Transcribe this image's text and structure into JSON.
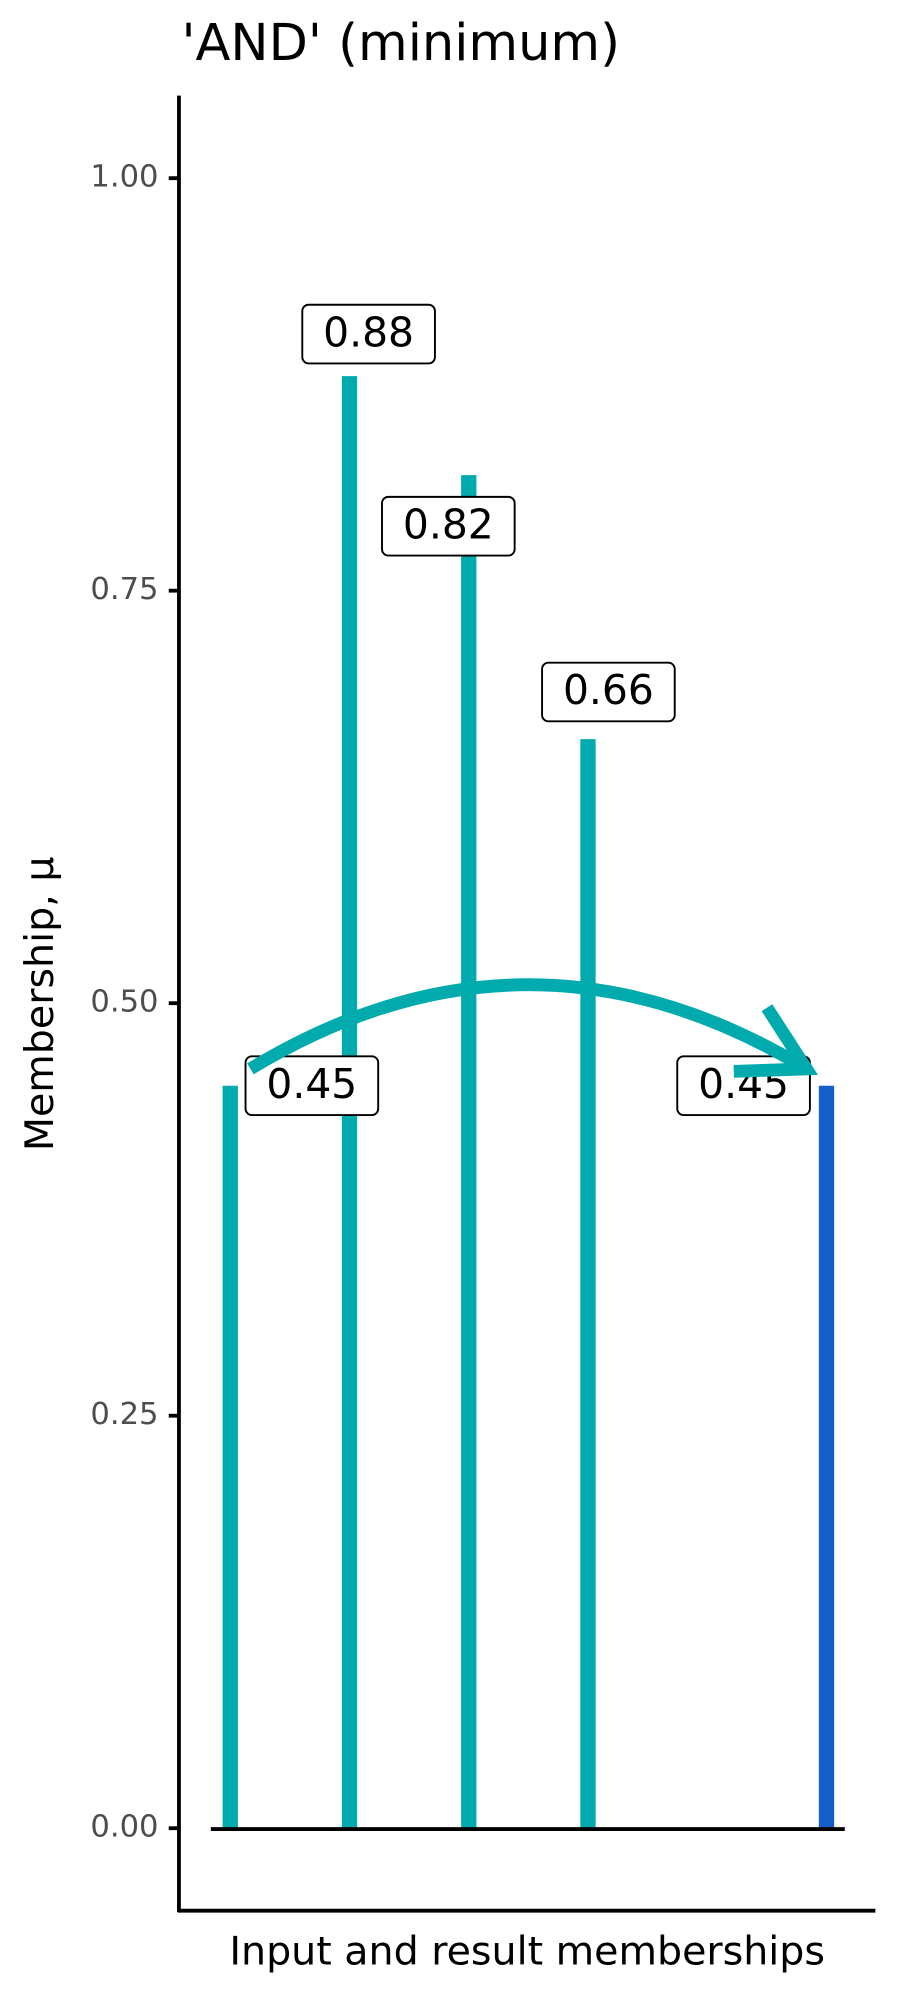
{
  "chart_data": {
    "type": "lollipop",
    "title": "'AND' (minimum)",
    "x_label": "Input and result memberships",
    "y_label": "Membership, μ",
    "x": [
      1,
      2,
      3,
      4,
      6
    ],
    "values": [
      0.45,
      0.88,
      0.82,
      0.66,
      0.45
    ],
    "colors": [
      "#00aaad",
      "#00aaad",
      "#00aaad",
      "#00aaad",
      "#1460c8"
    ],
    "xlim": [
      0.57,
      6.41
    ],
    "ylim": [
      -0.05,
      1.05
    ],
    "yticks": [
      {
        "value": 0,
        "label": "0.00"
      },
      0.25,
      {
        "value": 0.5,
        "label": "0.50"
      },
      0.75,
      {
        "value": 1,
        "label": "1.00"
      }
    ]
  }
}
